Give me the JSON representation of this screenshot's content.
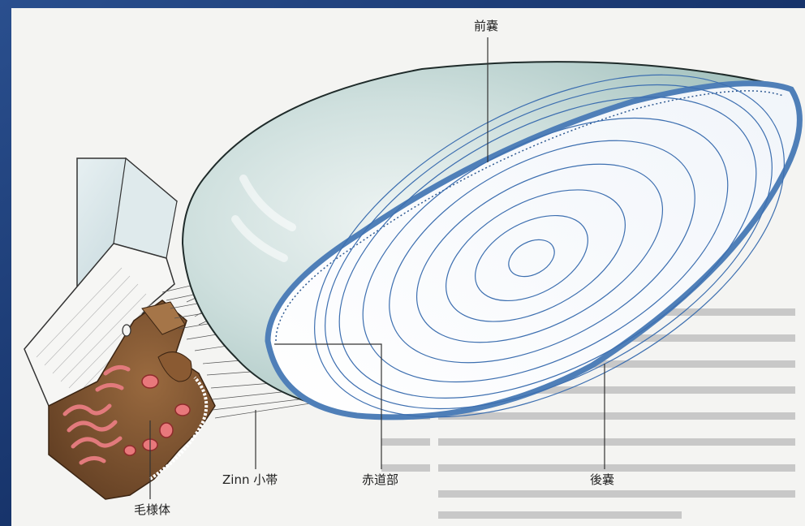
{
  "labels": {
    "anterior_capsule": "前嚢",
    "posterior_capsule": "後嚢",
    "zonule": "Zinn 小帯",
    "equator": "赤道部",
    "ciliary_body": "毛様体"
  },
  "colors": {
    "background_blue": "#1d3f7a",
    "page": "#f3f3f1",
    "lens_surface": "#b9d3d0",
    "capsule_edge": "#4f7fb8",
    "lens_fiber_lines": "#3d6fb0",
    "ciliary_tissue": "#6b3a22",
    "ciliary_vessels": "#d8686b",
    "sclera_block": "#cfe0e4"
  }
}
